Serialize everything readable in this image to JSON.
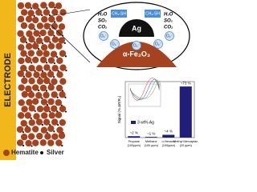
{
  "electrode_label": "ELECTRODE",
  "inset": {
    "silver_label": "Ag",
    "hematite_label": "α-Fe₂O₃",
    "gases_left": [
      "H₂O",
      "SO₂",
      "CO₂"
    ],
    "gases_right": [
      "H₂O",
      "SO₂",
      "CO₂"
    ],
    "target_molecules": [
      "CH₃-SH",
      "CH₃-SH"
    ],
    "oxygen_ions": [
      "O₂⁻",
      "O₂⁻",
      "O₂⁻",
      "O₂⁻",
      "O₂⁻"
    ]
  },
  "legend": [
    {
      "label": "Hematite",
      "color": "#a5431f"
    },
    {
      "label": "Silver",
      "color": "#111111"
    }
  ],
  "chart": {
    "type": "bar",
    "ylabel": "Signal (% ΔR/R₀)",
    "series_label": "3 wt% Ag",
    "categories": [
      "Propane (100ppm)",
      "Methane (100 ppm)",
      "n-Hexane (100ppm)",
      "Methyl Mercaptan (20 ppm)"
    ],
    "values": [
      2,
      1,
      4,
      73
    ],
    "value_labels": [
      "~2 %",
      "~1 %",
      "~4 %",
      "~73 %"
    ],
    "color": "#1f1f7a",
    "ylim": [
      0,
      80
    ]
  }
}
